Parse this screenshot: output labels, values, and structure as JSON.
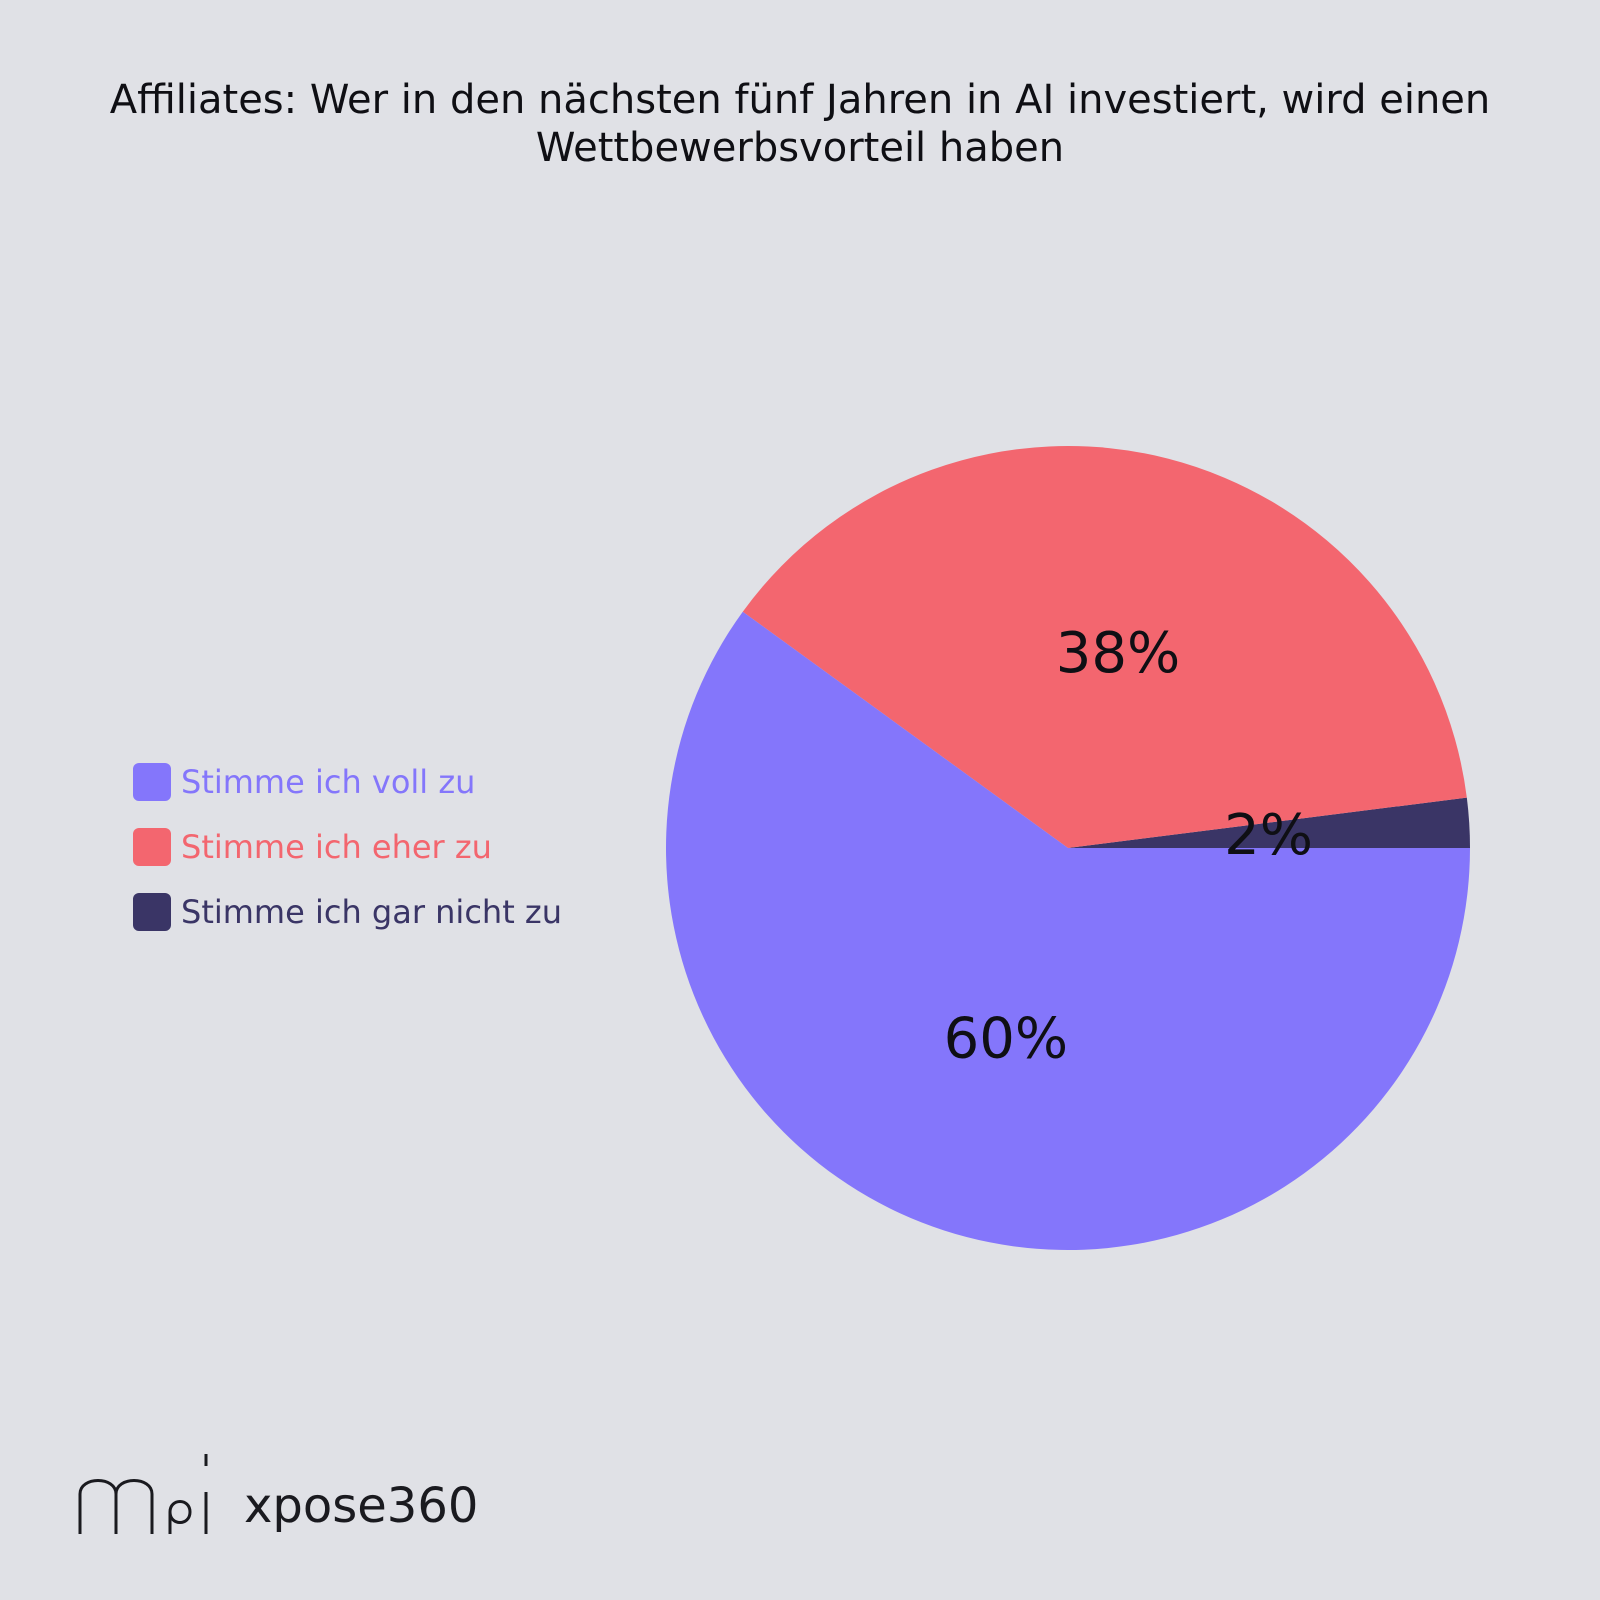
{
  "title": "Affiliates: Wer in den nächsten fünf Jahren in AI investiert, wird einen Wettbewerbsvorteil haben",
  "brand": {
    "logo_text": "mai",
    "name": "xpose360"
  },
  "chart_data": {
    "type": "pie",
    "title": "Affiliates: Wer in den nächsten fünf Jahren in AI investiert, wird einen Wettbewerbsvorteil haben",
    "legend_position": "left",
    "slices": [
      {
        "label": "Stimme ich voll zu",
        "value": 60,
        "display": "60%",
        "color": "#8476fb"
      },
      {
        "label": "Stimme ich eher zu",
        "value": 38,
        "display": "38%",
        "color": "#f3666f"
      },
      {
        "label": "Stimme ich gar nicht zu",
        "value": 2,
        "display": "2%",
        "color": "#3a3566"
      }
    ]
  }
}
